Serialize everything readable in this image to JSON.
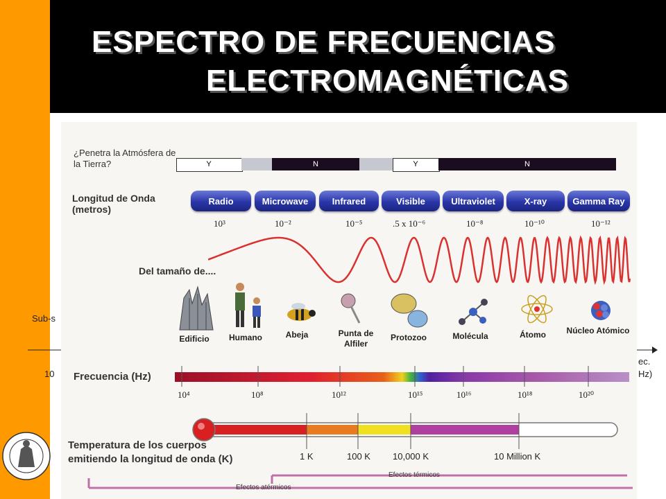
{
  "title": {
    "line1": "ESPECTRO DE FRECUENCIAS",
    "line2": "ELECTROMAGNÉTICAS"
  },
  "side": {
    "sub": "Sub-s",
    "exp": "10",
    "rec": "ec.",
    "hz": "Hz)"
  },
  "atmosphere": {
    "question": "¿Penetra la Atmósfera de la Tierra?",
    "segments": [
      {
        "label": "Y",
        "color": "#ffffff"
      },
      {
        "label": "",
        "color": "#c7c7d0"
      },
      {
        "label": "N",
        "color": "#1a0d1f"
      },
      {
        "label": "",
        "color": "#c7c7d0"
      },
      {
        "label": "Y",
        "color": "#ffffff"
      },
      {
        "label": "N",
        "color": "#1a0d1f"
      }
    ]
  },
  "wavelength": {
    "label": "Longitud de Onda (metros)",
    "bands": [
      "Radio",
      "Microwave",
      "Infrared",
      "Visible",
      "Ultraviolet",
      "X-ray",
      "Gamma Ray"
    ],
    "values": [
      "10³",
      "10⁻²",
      "10⁻⁵",
      ".5 x 10⁻⁶",
      "10⁻⁸",
      "10⁻¹⁰",
      "10⁻¹²"
    ]
  },
  "size": {
    "label": "Del tamaño de....",
    "objects": [
      "Edificio",
      "Humano",
      "Abeja",
      "Punta de Alfiler",
      "Protozoo",
      "Molécula",
      "Átomo",
      "Núcleo Atómico"
    ]
  },
  "frequency": {
    "label": "Frecuencia (Hz)",
    "values": [
      "10⁴",
      "10⁸",
      "10¹²",
      "10¹⁵",
      "10¹⁶",
      "10¹⁸",
      "10²⁰"
    ]
  },
  "temperature": {
    "label_line1": "Temperatura de los cuerpos",
    "label_line2": "emitiendo la longitud de onda (K)",
    "values": [
      "1 K",
      "100 K",
      "10,000 K",
      "10 Million K"
    ]
  },
  "effects": {
    "thermal": "Efectos térmicos",
    "athermal": "Efectos atérmicos"
  },
  "colors": {
    "orange": "#ff9900",
    "band_blue": "#2a36a8",
    "wave_red": "#d93030"
  }
}
